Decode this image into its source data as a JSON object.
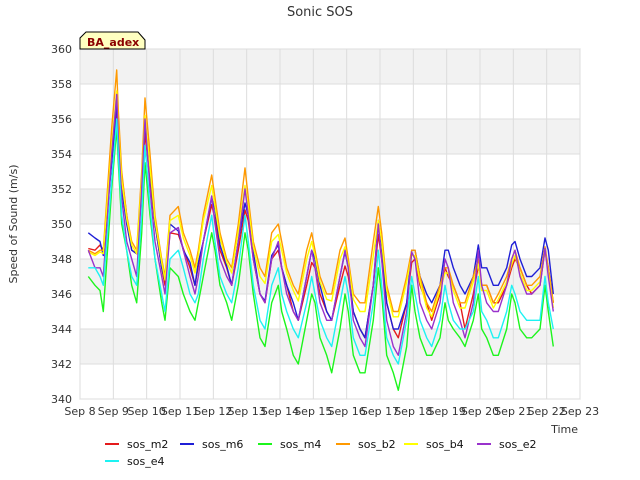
{
  "chart_data": {
    "type": "line",
    "title": "Sonic SOS",
    "xlabel": "Time",
    "ylabel": "Speed of Sound (m/s)",
    "badge": "BA_adex",
    "ylim": [
      340,
      360
    ],
    "yticks": [
      340,
      342,
      344,
      346,
      348,
      350,
      352,
      354,
      356,
      358,
      360
    ],
    "xlim": [
      8,
      23
    ],
    "xticks": [
      {
        "v": 8,
        "label": "Sep 8"
      },
      {
        "v": 9,
        "label": "Sep 9"
      },
      {
        "v": 10,
        "label": "Sep 10"
      },
      {
        "v": 11,
        "label": "Sep 11"
      },
      {
        "v": 12,
        "label": "Sep 12"
      },
      {
        "v": 13,
        "label": "Sep 13"
      },
      {
        "v": 14,
        "label": "Sep 14"
      },
      {
        "v": 15,
        "label": "Sep 15"
      },
      {
        "v": 16,
        "label": "Sep 16"
      },
      {
        "v": 17,
        "label": "Sep 17"
      },
      {
        "v": 18,
        "label": "Sep 18"
      },
      {
        "v": 19,
        "label": "Sep 19"
      },
      {
        "v": 20,
        "label": "Sep 20"
      },
      {
        "v": 21,
        "label": "Sep 21"
      },
      {
        "v": 22,
        "label": "Sep 22"
      },
      {
        "v": 23,
        "label": "Sep 23"
      }
    ],
    "grid": true,
    "legend_position": "bottom",
    "x": [
      8.25,
      8.45,
      8.6,
      8.7,
      8.95,
      9.1,
      9.15,
      9.25,
      9.4,
      9.55,
      9.7,
      9.85,
      9.95,
      10.1,
      10.25,
      10.45,
      10.55,
      10.7,
      10.95,
      11.1,
      11.3,
      11.45,
      11.55,
      11.7,
      11.95,
      12.05,
      12.2,
      12.4,
      12.55,
      12.75,
      12.95,
      13.05,
      13.2,
      13.4,
      13.55,
      13.75,
      13.95,
      14.05,
      14.2,
      14.4,
      14.55,
      14.8,
      14.95,
      15.05,
      15.2,
      15.4,
      15.55,
      15.8,
      15.95,
      16.05,
      16.2,
      16.4,
      16.55,
      16.8,
      16.95,
      17.05,
      17.2,
      17.4,
      17.55,
      17.8,
      17.95,
      18.05,
      18.2,
      18.4,
      18.55,
      18.8,
      18.95,
      19.05,
      19.2,
      19.4,
      19.55,
      19.8,
      19.95,
      20.05,
      20.2,
      20.4,
      20.55,
      20.8,
      20.95,
      21.05,
      21.2,
      21.4,
      21.55,
      21.8,
      21.95,
      22.05,
      22.2
    ],
    "series": [
      {
        "name": "sos_m2",
        "color": "#e41a1c",
        "values": [
          348.6,
          348.5,
          348.8,
          348.5,
          353.6,
          356.5,
          354.5,
          352.8,
          350.5,
          348.5,
          348.3,
          351.7,
          355.2,
          352.5,
          350.0,
          347.5,
          346.5,
          349.5,
          349.4,
          348.6,
          347.5,
          346.5,
          347.6,
          349.0,
          351.1,
          350.3,
          348.5,
          347.5,
          346.5,
          348.5,
          350.8,
          350.2,
          348.0,
          346.0,
          345.5,
          348.0,
          348.5,
          347.5,
          346.5,
          345.0,
          344.5,
          346.5,
          347.8,
          347.5,
          346.0,
          345.0,
          344.5,
          346.5,
          347.6,
          347.0,
          345.0,
          344.0,
          343.5,
          346.5,
          349.4,
          348.0,
          345.5,
          344.0,
          343.5,
          345.5,
          347.8,
          348.0,
          346.5,
          345.5,
          344.5,
          346.0,
          347.5,
          347.0,
          346.5,
          345.5,
          344.0,
          346.0,
          347.6,
          346.5,
          346.5,
          345.5,
          345.5,
          346.5,
          347.5,
          348.0,
          347.5,
          346.5,
          346.0,
          346.5,
          348.5,
          347.5,
          345.5
        ]
      },
      {
        "name": "sos_m6",
        "color": "#1f1fd6",
        "values": [
          349.5,
          349.2,
          349.0,
          348.2,
          353.5,
          356.9,
          355.2,
          352.0,
          350.0,
          348.5,
          348.3,
          352.0,
          355.7,
          353.0,
          350.0,
          347.5,
          346.8,
          350.0,
          349.6,
          348.5,
          347.8,
          346.5,
          347.8,
          349.0,
          351.5,
          350.8,
          348.8,
          347.6,
          346.5,
          349.0,
          351.2,
          350.5,
          348.4,
          346.0,
          345.6,
          348.2,
          348.8,
          347.5,
          346.5,
          345.5,
          344.5,
          347.0,
          348.5,
          348.0,
          346.5,
          345.0,
          344.5,
          347.0,
          348.4,
          347.5,
          345.0,
          344.0,
          343.5,
          346.5,
          350.2,
          348.8,
          345.5,
          344.0,
          344.0,
          345.5,
          348.5,
          348.5,
          347.0,
          346.0,
          345.5,
          346.5,
          348.5,
          348.5,
          347.5,
          346.5,
          346.0,
          347.0,
          348.8,
          347.5,
          347.5,
          346.5,
          346.5,
          347.5,
          348.8,
          349.0,
          348.0,
          347.0,
          347.0,
          347.5,
          349.2,
          348.5,
          346.0
        ]
      },
      {
        "name": "sos_m4",
        "color": "#1cf51c",
        "values": [
          347.0,
          346.5,
          346.2,
          345.0,
          352.0,
          355.5,
          353.5,
          350.0,
          348.5,
          346.5,
          345.5,
          349.5,
          353.5,
          350.5,
          348.0,
          345.5,
          344.5,
          347.5,
          347.0,
          346.0,
          345.0,
          344.5,
          345.5,
          347.0,
          349.5,
          348.5,
          346.5,
          345.5,
          344.5,
          346.5,
          349.5,
          348.5,
          346.0,
          343.5,
          343.0,
          345.5,
          346.5,
          345.0,
          344.0,
          342.5,
          342.0,
          344.5,
          346.0,
          345.5,
          343.5,
          342.5,
          341.5,
          344.0,
          346.0,
          345.0,
          342.5,
          341.5,
          341.5,
          344.5,
          347.5,
          346.0,
          342.5,
          341.5,
          340.5,
          343.0,
          346.5,
          345.0,
          343.5,
          342.5,
          342.5,
          343.5,
          345.5,
          344.5,
          344.0,
          343.5,
          343.0,
          344.5,
          346.0,
          344.0,
          343.5,
          342.5,
          342.5,
          344.0,
          346.0,
          345.5,
          344.0,
          343.5,
          343.5,
          344.0,
          346.5,
          345.0,
          343.0
        ]
      },
      {
        "name": "sos_b2",
        "color": "#ff9900",
        "values": [
          348.5,
          348.3,
          348.5,
          348.5,
          355.5,
          358.8,
          356.5,
          353.0,
          350.5,
          349.0,
          348.5,
          353.0,
          357.2,
          354.0,
          350.5,
          348.0,
          347.0,
          350.5,
          351.0,
          349.5,
          348.5,
          347.5,
          348.5,
          350.5,
          352.8,
          351.5,
          349.5,
          348.0,
          347.5,
          350.0,
          353.2,
          351.5,
          349.0,
          347.5,
          347.0,
          349.5,
          350.0,
          349.0,
          347.5,
          346.5,
          346.0,
          348.5,
          349.5,
          348.5,
          347.0,
          346.0,
          346.0,
          348.5,
          349.2,
          348.0,
          346.0,
          345.5,
          345.5,
          349.0,
          351.0,
          349.5,
          346.5,
          345.0,
          345.0,
          347.0,
          348.5,
          348.5,
          347.0,
          345.5,
          345.0,
          346.5,
          347.5,
          347.5,
          346.5,
          345.5,
          345.5,
          347.0,
          348.0,
          346.5,
          346.5,
          345.5,
          346.0,
          347.0,
          348.0,
          348.5,
          347.5,
          346.5,
          346.5,
          347.0,
          348.7,
          347.5,
          345.5
        ]
      },
      {
        "name": "sos_b4",
        "color": "#ffff00",
        "values": [
          348.4,
          348.2,
          348.4,
          348.3,
          354.5,
          357.6,
          355.5,
          352.5,
          350.3,
          348.8,
          348.3,
          352.5,
          356.2,
          353.2,
          350.2,
          347.8,
          346.8,
          350.2,
          350.5,
          349.2,
          348.2,
          347.2,
          348.2,
          350.2,
          352.2,
          351.0,
          349.2,
          347.8,
          347.2,
          349.6,
          352.2,
          351.0,
          348.7,
          347.0,
          346.6,
          349.0,
          349.4,
          348.5,
          347.2,
          346.2,
          345.6,
          348.0,
          349.0,
          348.2,
          346.7,
          345.7,
          345.6,
          348.0,
          348.7,
          347.7,
          345.7,
          345.0,
          345.0,
          348.2,
          350.2,
          349.0,
          346.2,
          344.7,
          344.7,
          346.7,
          348.2,
          348.2,
          346.7,
          345.2,
          344.7,
          346.2,
          347.2,
          347.2,
          346.2,
          345.2,
          345.2,
          346.7,
          347.7,
          346.2,
          346.2,
          345.2,
          345.7,
          346.7,
          347.7,
          348.2,
          347.2,
          346.2,
          346.2,
          346.7,
          348.5,
          347.2,
          345.2
        ]
      },
      {
        "name": "sos_e2",
        "color": "#9932cc",
        "values": [
          348.5,
          347.5,
          347.5,
          347.0,
          354.0,
          357.4,
          355.0,
          351.5,
          349.0,
          348.0,
          347.0,
          352.0,
          356.0,
          352.0,
          349.0,
          347.0,
          346.0,
          349.5,
          349.8,
          348.5,
          347.0,
          346.0,
          347.0,
          349.0,
          351.6,
          350.0,
          348.0,
          347.0,
          346.5,
          349.0,
          352.0,
          350.5,
          348.0,
          346.0,
          345.5,
          348.0,
          349.0,
          347.5,
          346.0,
          345.0,
          344.5,
          347.0,
          348.5,
          347.5,
          345.5,
          344.5,
          344.5,
          347.0,
          348.5,
          347.5,
          344.5,
          343.5,
          343.0,
          346.5,
          350.0,
          348.0,
          344.5,
          343.0,
          342.5,
          345.0,
          348.4,
          348.0,
          345.5,
          344.5,
          344.0,
          345.5,
          348.0,
          347.5,
          345.5,
          344.5,
          343.5,
          345.5,
          348.5,
          346.5,
          345.5,
          345.0,
          345.0,
          346.5,
          348.0,
          348.5,
          347.0,
          346.0,
          346.0,
          346.5,
          348.6,
          347.0,
          345.0
        ]
      },
      {
        "name": "sos_e4",
        "color": "#1df2f2",
        "values": [
          347.5,
          347.5,
          347.0,
          346.5,
          352.5,
          356.0,
          354.0,
          350.5,
          348.5,
          347.0,
          346.5,
          350.5,
          354.5,
          351.0,
          348.0,
          346.0,
          345.0,
          348.0,
          348.5,
          347.5,
          346.0,
          345.5,
          346.0,
          348.0,
          350.5,
          349.0,
          347.0,
          346.0,
          345.5,
          347.5,
          350.5,
          349.0,
          346.5,
          344.5,
          344.0,
          346.5,
          347.5,
          346.0,
          345.0,
          344.0,
          343.5,
          345.5,
          347.0,
          346.0,
          344.5,
          343.5,
          343.0,
          345.5,
          347.0,
          346.0,
          343.5,
          342.5,
          342.5,
          345.5,
          348.5,
          346.5,
          343.5,
          342.5,
          342.0,
          344.5,
          347.0,
          346.0,
          344.5,
          343.5,
          343.0,
          344.5,
          346.5,
          345.5,
          344.5,
          344.0,
          344.0,
          345.0,
          347.0,
          345.0,
          344.5,
          343.5,
          343.5,
          345.0,
          346.5,
          346.0,
          345.0,
          344.5,
          344.5,
          344.5,
          347.0,
          345.5,
          344.0
        ]
      }
    ]
  }
}
